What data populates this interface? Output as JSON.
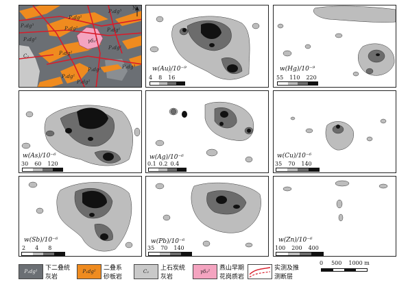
{
  "colors": {
    "limestone_p1": "#6b6f74",
    "sandstone": "#ef8b1f",
    "limestone_c2": "#c9c9c9",
    "granite": "#f4a4c0",
    "fault": "#d81c2a",
    "level1": "#bdbdbd",
    "level2": "#6c6c6c",
    "level3": "#111111"
  },
  "geology": {
    "labels": [
      "P₁dg³",
      "P₁dg²",
      "P₁dg³",
      "P₁dg²",
      "P₁dg¹",
      "P₁dg²",
      "γδ₅²",
      "P₁dg²",
      "P₁dg¹",
      "C₂",
      "P₁dg²",
      "P₁dg³",
      "P₁dg¹",
      "P₁dg²"
    ],
    "north_label": "N"
  },
  "panels": [
    {
      "id": "au",
      "title": "w(Au)/10⁻⁹",
      "ticks": [
        "4",
        "8",
        "16"
      ]
    },
    {
      "id": "hg",
      "title": "w(Hg)/10⁻⁹",
      "ticks": [
        "55",
        "110",
        "220"
      ]
    },
    {
      "id": "as",
      "title": "w(As)/10⁻⁶",
      "ticks": [
        "30",
        "60",
        "120"
      ]
    },
    {
      "id": "ag",
      "title": "w(Ag)/10⁻⁶",
      "ticks": [
        "0.1",
        "0.2",
        "0.4"
      ]
    },
    {
      "id": "cu",
      "title": "w(Cu)/10⁻⁶",
      "ticks": [
        "35",
        "70",
        "140"
      ]
    },
    {
      "id": "sb",
      "title": "w(Sb)/10⁻⁶",
      "ticks": [
        "2",
        "4",
        "8"
      ]
    },
    {
      "id": "pb",
      "title": "w(Pb)/10⁻⁶",
      "ticks": [
        "35",
        "70",
        "140"
      ]
    },
    {
      "id": "zn",
      "title": "w(Zn)/10⁻⁶",
      "ticks": [
        "100",
        "200",
        "400"
      ]
    }
  ],
  "legend": {
    "items": [
      {
        "code": "P₁dg¹",
        "line1": "下二叠统",
        "line2": "灰岩"
      },
      {
        "code": "P₁dg²",
        "line1": "二叠系",
        "line2": "砂板岩"
      },
      {
        "code": "C₂",
        "line1": "上石炭统",
        "line2": "灰岩"
      },
      {
        "code": "γδ₅²",
        "line1": "燕山早期",
        "line2": "花岗质岩"
      },
      {
        "code": "",
        "line1": "实测及推",
        "line2": "测断层"
      }
    ],
    "scale_labels": [
      "0",
      "500",
      "1000 m"
    ]
  }
}
